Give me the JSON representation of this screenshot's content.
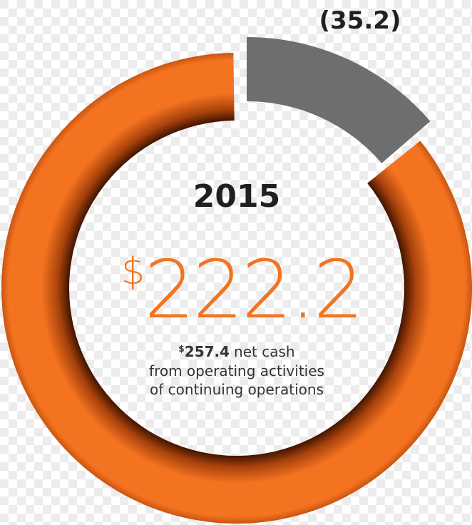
{
  "chart_data": {
    "type": "donut",
    "title": "2015",
    "currency": "$",
    "categories": [
      null,
      null
    ],
    "values": [
      222.2,
      35.2
    ],
    "value_labels": [
      "222.2",
      "(35.2)"
    ],
    "colors": [
      "#f47320",
      "#6d6e70"
    ],
    "note": {
      "amount": 257.4,
      "lines": [
        "net cash",
        "from operating activities",
        "of continuing operations"
      ]
    }
  }
}
